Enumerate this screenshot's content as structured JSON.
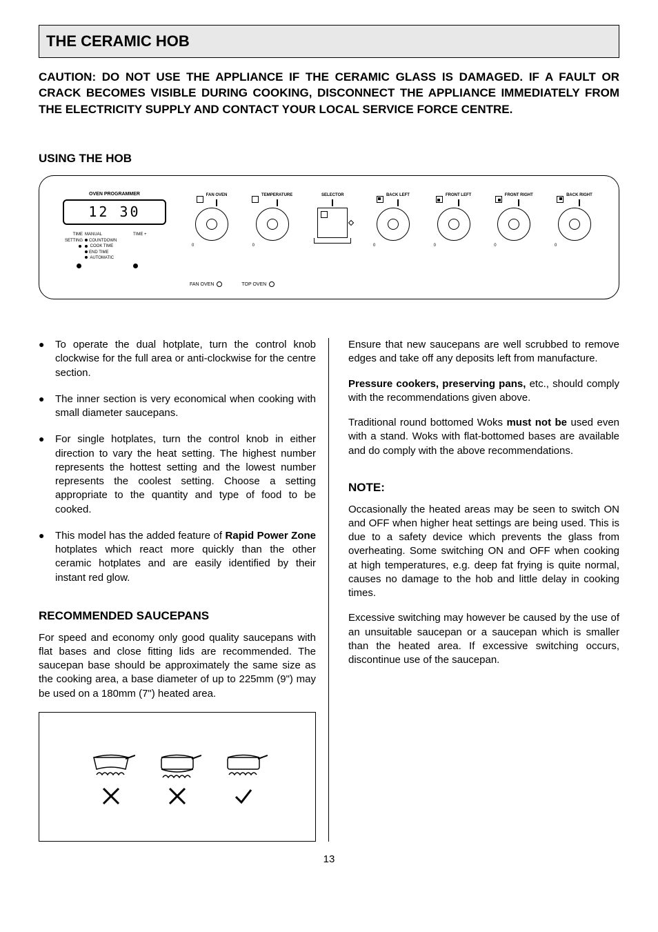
{
  "header": {
    "title": "THE CERAMIC HOB"
  },
  "caution": "CAUTION:  DO NOT USE THE APPLIANCE IF THE CERAMIC GLASS IS DAMAGED.  IF A FAULT OR CRACK BECOMES VISIBLE DURING COOKING, DISCONNECT THE APPLIANCE IMMEDIATELY FROM THE ELECTRICITY SUPPLY AND CONTACT YOUR LOCAL SERVICE FORCE CENTRE.",
  "using_hob_title": "USING THE HOB",
  "panel": {
    "programmer_title": "OVEN PROGRAMMER",
    "display": "12 30",
    "legend_left": "TIME SETTING",
    "legend_items": [
      "MANUAL",
      "COUNTDOWN",
      "COOK TIME",
      "END TIME",
      "AUTOMATIC"
    ],
    "legend_right": "TIME +",
    "knobs": [
      {
        "label": "FAN OVEN"
      },
      {
        "label": "TEMPERATURE"
      },
      {
        "label": "SELECTOR"
      },
      {
        "label": "BACK LEFT"
      },
      {
        "label": "FRONT LEFT"
      },
      {
        "label": "FRONT RIGHT"
      },
      {
        "label": "BACK RIGHT"
      }
    ],
    "bottom_legend": [
      {
        "label": "FAN OVEN"
      },
      {
        "label": "TOP OVEN"
      }
    ]
  },
  "left_bullets": [
    "To operate the dual hotplate, turn the control knob clockwise for the full area or anti-clockwise for the centre section.",
    "The inner section is very economical when cooking with small diameter saucepans.",
    "For single hotplates, turn the control knob in either direction to vary the heat setting.  The highest number represents the hottest setting and the lowest number represents the coolest setting.  Choose a setting appropriate to the quantity and type of food to be cooked.",
    "This model has the added feature of <b>Rapid Power Zone</b> hotplates which react more quickly than the other ceramic hotplates and are easily identified by their instant red glow."
  ],
  "saucepans_title": "RECOMMENDED SAUCEPANS",
  "saucepans_intro": "For speed and economy only good quality saucepans with flat bases and close fitting lids are recommended.  The saucepan base should be approximately the same size as the cooking area, a base diameter of up to 225mm (9\") may be used on a 180mm (7\") heated area.",
  "right_paras": [
    "Ensure that new saucepans are well scrubbed to remove edges and take off any deposits left from manufacture.",
    "<b>Pressure cookers, preserving pans,</b> etc., should comply with the recommendations given above.",
    "Traditional round bottomed Woks <b>must not be</b> used even with a stand.  Woks with flat-bottomed bases are available and do comply with the above recommendations."
  ],
  "note_title": "NOTE:",
  "note_paras": [
    "Occasionally the heated areas may be seen to switch ON and OFF when higher heat settings are being used.  This is due to a safety device which prevents the glass from overheating.  Some switching ON and OFF when cooking at high temperatures, e.g. deep fat frying is quite normal, causes no damage to the hob and little delay in cooking times.",
    "Excessive switching may however be caused by the use of an unsuitable saucepan or a saucepan which is smaller than the heated area.  If excessive switching occurs, discontinue use of the saucepan."
  ],
  "page_number": "13"
}
